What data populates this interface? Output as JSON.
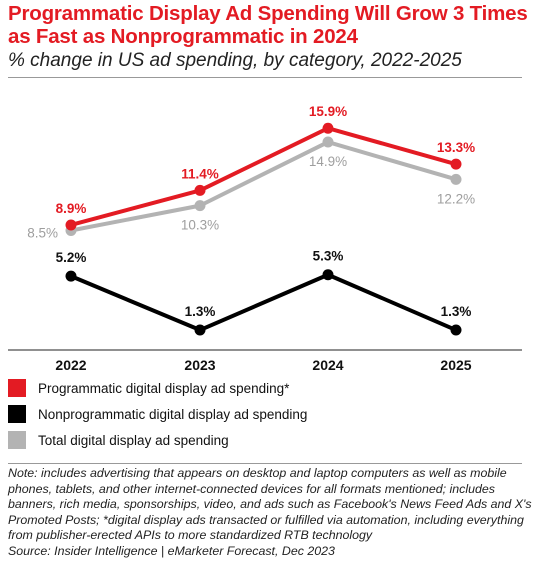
{
  "header": {
    "title": "Programmatic Display Ad Spending Will Grow 3 Times as Fast as Nonprogrammatic in 2024",
    "subtitle": "% change in US ad spending, by category, 2022-2025"
  },
  "chart_data": {
    "type": "line",
    "x": [
      "2022",
      "2023",
      "2024",
      "2025"
    ],
    "series": [
      {
        "name": "Programmatic digital display ad spending*",
        "values": [
          8.9,
          11.4,
          15.9,
          13.3
        ],
        "labels": [
          "8.9%",
          "11.4%",
          "15.9%",
          "13.3%"
        ],
        "color": "#e31b23"
      },
      {
        "name": "Nonprogrammatic digital display ad spending",
        "values": [
          5.2,
          1.3,
          5.3,
          1.3
        ],
        "labels": [
          "5.2%",
          "1.3%",
          "5.3%",
          "1.3%"
        ],
        "color": "#000000"
      },
      {
        "name": "Total digital display ad spending",
        "values": [
          8.5,
          10.3,
          14.9,
          12.2
        ],
        "labels": [
          "8.5%",
          "10.3%",
          "14.9%",
          "12.2%"
        ],
        "color": "#b3b3b3"
      }
    ],
    "ylim": [
      0,
      17
    ],
    "grid": false,
    "legend_position": "bottom"
  },
  "footer": {
    "note": "Note: includes advertising that appears on desktop and laptop computers as well as mobile phones, tablets, and other internet-connected devices for all formats mentioned; includes banners, rich media, sponsorships, video, and ads such as Facebook's News Feed Ads and X's Promoted Posts; *digital display ads transacted or fulfilled via automation, including everything from publisher-erected APIs to more standardized RTB technology",
    "source": "Source: Insider Intelligence | eMarketer Forecast, Dec 2023"
  }
}
